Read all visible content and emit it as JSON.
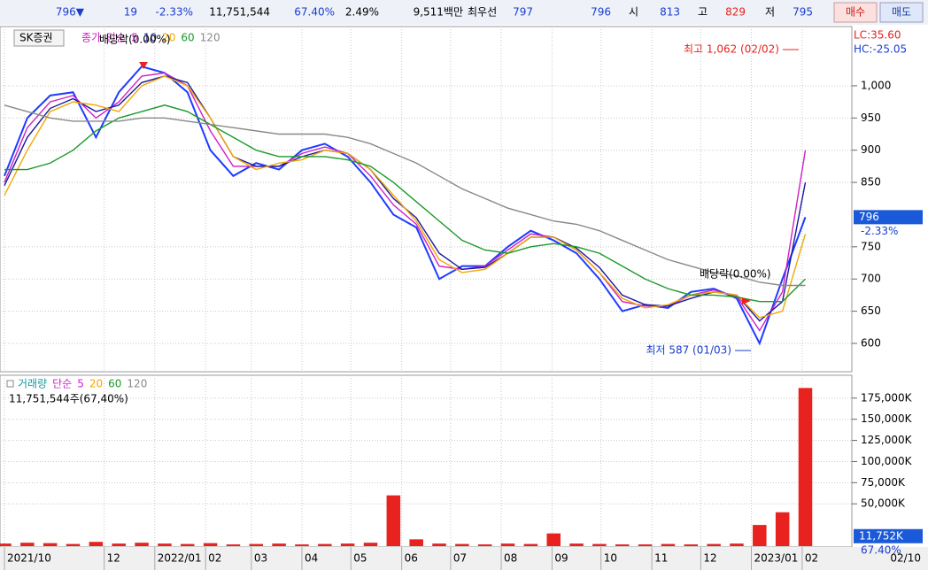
{
  "quote": {
    "price": "796▼",
    "change": "19",
    "change_pct": "-2.33%",
    "volume": "11,751,544",
    "volume_ratio": "67.40%",
    "turnover": "2.49%",
    "amount": "9,511백만",
    "best_label": "최우선",
    "ask": "797",
    "bid": "796",
    "open_label": "시",
    "open": "813",
    "high_label": "고",
    "high": "829",
    "low_label": "저",
    "low": "795",
    "buy": "매수",
    "sell": "매도"
  },
  "chart_data": [
    {
      "type": "line",
      "name_box": "SK증권",
      "method": "단순",
      "ylim": [
        556,
        1092
      ],
      "yticks": [
        600,
        650,
        700,
        750,
        850,
        900,
        950,
        {
          "value": 1000,
          "label": "1,000"
        }
      ],
      "xlim": [
        0,
        35.6
      ],
      "right_labels": [
        "LC:35.60",
        "HC:-25.05"
      ],
      "annotations": [
        "배당락(0.00%)",
        "최고 1,062 (02/02)",
        "최저 587 (01/03)",
        "배당락(0.00%)"
      ],
      "series": [
        {
          "name": "종가",
          "color": "#1e3cff",
          "values": [
            860,
            950,
            985,
            990,
            920,
            990,
            1030,
            1020,
            990,
            900,
            860,
            880,
            870,
            900,
            910,
            890,
            850,
            800,
            780,
            700,
            720,
            720,
            750,
            775,
            760,
            740,
            700,
            650,
            660,
            655,
            680,
            685,
            670,
            600,
            700,
            796
          ]
        },
        {
          "name": "5",
          "color": "#d020c8",
          "values": [
            850,
            935,
            975,
            985,
            950,
            975,
            1015,
            1020,
            1000,
            930,
            875,
            875,
            875,
            895,
            905,
            895,
            860,
            815,
            785,
            720,
            715,
            720,
            745,
            770,
            765,
            745,
            710,
            665,
            658,
            658,
            675,
            683,
            673,
            620,
            680,
            900
          ]
        },
        {
          "name": "10",
          "color": "#1a1a9a",
          "values": [
            845,
            920,
            965,
            980,
            960,
            970,
            1005,
            1015,
            1005,
            950,
            890,
            875,
            875,
            890,
            900,
            895,
            870,
            825,
            795,
            740,
            715,
            718,
            740,
            765,
            765,
            748,
            718,
            675,
            660,
            658,
            670,
            680,
            675,
            635,
            665,
            850
          ]
        },
        {
          "name": "20",
          "color": "#f0a800",
          "values": [
            830,
            900,
            960,
            975,
            970,
            960,
            1000,
            1015,
            1000,
            950,
            890,
            870,
            880,
            885,
            900,
            895,
            870,
            830,
            790,
            730,
            710,
            715,
            740,
            765,
            765,
            745,
            710,
            670,
            655,
            660,
            675,
            680,
            675,
            640,
            650,
            770
          ]
        },
        {
          "name": "60",
          "color": "#1a9a2a",
          "values": [
            870,
            870,
            880,
            900,
            930,
            950,
            960,
            970,
            960,
            940,
            920,
            900,
            890,
            890,
            890,
            885,
            875,
            850,
            820,
            790,
            760,
            745,
            740,
            750,
            755,
            750,
            740,
            720,
            700,
            685,
            675,
            675,
            672,
            665,
            665,
            700
          ]
        },
        {
          "name": "120",
          "color": "#888888",
          "values": [
            970,
            960,
            950,
            945,
            945,
            945,
            950,
            950,
            945,
            940,
            935,
            930,
            925,
            925,
            925,
            920,
            910,
            895,
            880,
            860,
            840,
            825,
            810,
            800,
            790,
            785,
            775,
            760,
            745,
            730,
            720,
            710,
            705,
            695,
            690,
            690
          ]
        }
      ]
    },
    {
      "type": "bar",
      "name_box": "거래량",
      "method": "단순",
      "subtitle": "11,751,544주(67,40%)",
      "ma_legend": [
        {
          "name": "5",
          "color": "#d020c8"
        },
        {
          "name": "20",
          "color": "#f0a800"
        },
        {
          "name": "60",
          "color": "#1a9a2a"
        },
        {
          "name": "120",
          "color": "#888888"
        }
      ],
      "ylim": [
        0,
        202000
      ],
      "yticks": [
        {
          "value": 50000,
          "label": "50,000K"
        },
        {
          "value": 75000,
          "label": "75,000K"
        },
        {
          "value": 100000,
          "label": "100,000K"
        },
        {
          "value": 125000,
          "label": "125,000K"
        },
        {
          "value": 150000,
          "label": "150,000K"
        },
        {
          "value": 175000,
          "label": "175,000K"
        }
      ],
      "xlim": [
        0,
        35.6
      ],
      "xticks": [
        {
          "value": 0,
          "label": "2021/10"
        },
        {
          "value": 4.36,
          "label": "12"
        },
        {
          "value": 6.57,
          "label": "2022/01"
        },
        {
          "value": 8.79,
          "label": "02"
        },
        {
          "value": 10.79,
          "label": "03"
        },
        {
          "value": 13,
          "label": "04"
        },
        {
          "value": 15.14,
          "label": "05"
        },
        {
          "value": 17.36,
          "label": "06"
        },
        {
          "value": 19.5,
          "label": "07"
        },
        {
          "value": 21.71,
          "label": "08"
        },
        {
          "value": 23.93,
          "label": "09"
        },
        {
          "value": 26.07,
          "label": "10"
        },
        {
          "value": 28.29,
          "label": "11"
        },
        {
          "value": 30.43,
          "label": "12"
        },
        {
          "value": 32.64,
          "label": "2023/01"
        },
        {
          "value": 34.86,
          "label": "02"
        }
      ],
      "end_label": "02/10",
      "current": {
        "value": 11752,
        "label": "11,752K"
      },
      "color": "#e8221e",
      "values": [
        3000,
        4000,
        3500,
        2500,
        5000,
        3000,
        4000,
        3000,
        2500,
        3500,
        2000,
        2500,
        3000,
        2000,
        2500,
        3000,
        4000,
        60000,
        8000,
        3000,
        2500,
        2000,
        3000,
        2500,
        15000,
        3000,
        2500,
        2000,
        2000,
        2500,
        2000,
        2500,
        3000,
        25000,
        40000,
        187000
      ]
    }
  ]
}
